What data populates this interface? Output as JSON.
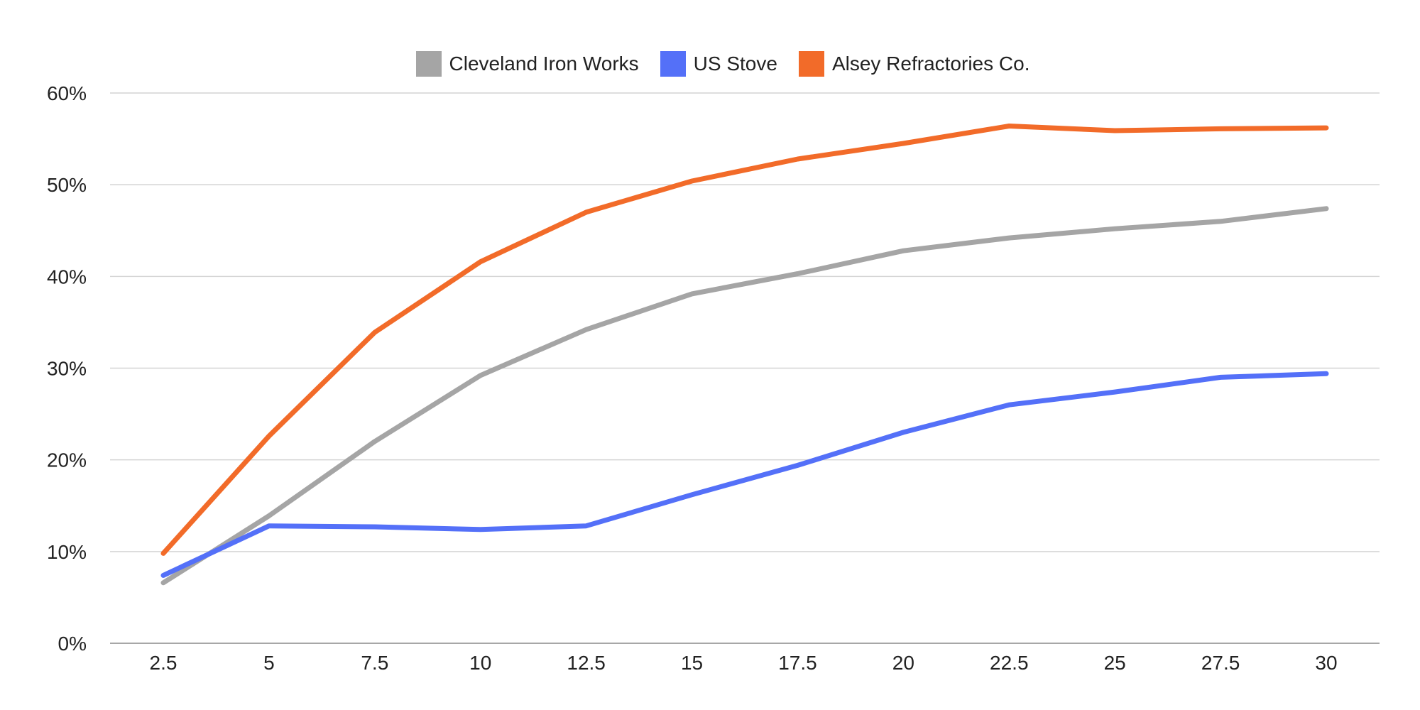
{
  "chart_data": {
    "type": "line",
    "title": "",
    "xlabel": "",
    "ylabel": "",
    "categories": [
      "2.5",
      "5",
      "7.5",
      "10",
      "12.5",
      "15",
      "17.5",
      "20",
      "22.5",
      "25",
      "27.5",
      "30"
    ],
    "x": [
      2.5,
      5,
      7.5,
      10,
      12.5,
      15,
      17.5,
      20,
      22.5,
      25,
      27.5,
      30
    ],
    "y_ticks": [
      0,
      10,
      20,
      30,
      40,
      50,
      60
    ],
    "y_tick_labels": [
      "0%",
      "10%",
      "20%",
      "30%",
      "40%",
      "50%",
      "60%"
    ],
    "ylim": [
      0,
      60
    ],
    "y_unit": "%",
    "grid": true,
    "legend_position": "top",
    "series": [
      {
        "name": "Cleveland Iron Works",
        "color": "#a5a5a5",
        "values": [
          6.6,
          13.9,
          22.0,
          29.2,
          34.2,
          38.1,
          40.3,
          42.8,
          44.2,
          45.2,
          46.0,
          47.4
        ]
      },
      {
        "name": "US Stove",
        "color": "#5470f8",
        "values": [
          7.4,
          12.8,
          12.7,
          12.4,
          12.8,
          16.2,
          19.4,
          23.0,
          26.0,
          27.4,
          29.0,
          29.4
        ]
      },
      {
        "name": "Alsey Refractories Co.",
        "color": "#f26b29",
        "values": [
          9.8,
          22.6,
          33.9,
          41.6,
          47.0,
          50.4,
          52.8,
          54.5,
          56.4,
          55.9,
          56.1,
          56.2
        ]
      }
    ]
  }
}
